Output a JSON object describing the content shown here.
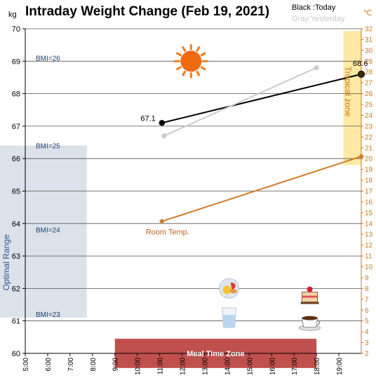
{
  "chart_data": {
    "type": "line",
    "title": "Intraday Weight Change (Feb 19, 2021)",
    "legend": {
      "today": "Black :Today",
      "yesterday": "Gray:Yesterday"
    },
    "left_axis": {
      "unit": "kg",
      "range": [
        60,
        70
      ],
      "ticks": [
        "60",
        "61",
        "62",
        "63",
        "64",
        "65",
        "66",
        "67",
        "68",
        "69",
        "70"
      ]
    },
    "right_axis": {
      "unit": "℃",
      "range": [
        2,
        32
      ],
      "ticks": [
        "2",
        "3",
        "4",
        "5",
        "6",
        "7",
        "8",
        "9",
        "10",
        "11",
        "12",
        "13",
        "14",
        "15",
        "16",
        "17",
        "18",
        "19",
        "20",
        "21",
        "22",
        "23",
        "24",
        "25",
        "26",
        "27",
        "28",
        "29",
        "30",
        "31",
        "32"
      ]
    },
    "x_axis": {
      "range": [
        5,
        20
      ],
      "ticks": [
        "5:00",
        "6:00",
        "7:00",
        "8:00",
        "9:00",
        "10:00",
        "11:00",
        "12:00",
        "13:00",
        "14:00",
        "15:00",
        "16:00",
        "17:00",
        "18:00",
        "19:00"
      ]
    },
    "series": [
      {
        "name": "Today",
        "color": "#000000",
        "axis": "left",
        "points": [
          {
            "x": 11.1,
            "y": 67.1
          },
          {
            "x": 20.0,
            "y": 68.6
          }
        ],
        "labels": [
          "67.1",
          "68.6"
        ]
      },
      {
        "name": "Yesterday",
        "color": "#cccccc",
        "axis": "left",
        "points": [
          {
            "x": 11.2,
            "y": 66.7
          },
          {
            "x": 18.0,
            "y": 68.8
          }
        ]
      },
      {
        "name": "Room Temp.",
        "color": "#d47a2a",
        "axis": "right",
        "points": [
          {
            "x": 11.1,
            "y": 14.2
          },
          {
            "x": 20.0,
            "y": 20.2
          }
        ]
      }
    ],
    "room_temp_label": "Room Temp.",
    "bands": {
      "optimal": {
        "label": "Optimal Range",
        "color": "#dbe2ea",
        "y_range": [
          61.1,
          66.4
        ],
        "x_range": [
          4.0,
          7.75
        ]
      },
      "tropical": {
        "label": "Tropical zone",
        "color": "#fde9a6",
        "temp_range": [
          19.4,
          31.8
        ],
        "x_range": [
          19.2,
          20.0
        ]
      },
      "meal": {
        "label": "Meal Time Zone",
        "color": "#c0504d",
        "x_range": [
          9.0,
          18.0
        ],
        "y_range": [
          59.55,
          60.45
        ]
      }
    },
    "bmi_lines": [
      {
        "label": "BMI=26",
        "y": 69.0
      },
      {
        "label": "BMI=25",
        "y": 66.3
      },
      {
        "label": "BMI=24",
        "y": 63.7
      },
      {
        "label": "BMI=23",
        "y": 61.1
      }
    ],
    "icons": [
      {
        "name": "sun-icon",
        "x": 12.4,
        "y": 69.0
      },
      {
        "name": "breakfast-plate-icon",
        "x": 14.1,
        "y": 62.0
      },
      {
        "name": "water-glass-icon",
        "x": 14.1,
        "y": 61.1
      },
      {
        "name": "cake-icon",
        "x": 17.7,
        "y": 61.8
      },
      {
        "name": "coffee-cup-icon",
        "x": 17.7,
        "y": 61.0
      }
    ],
    "grid": true
  }
}
